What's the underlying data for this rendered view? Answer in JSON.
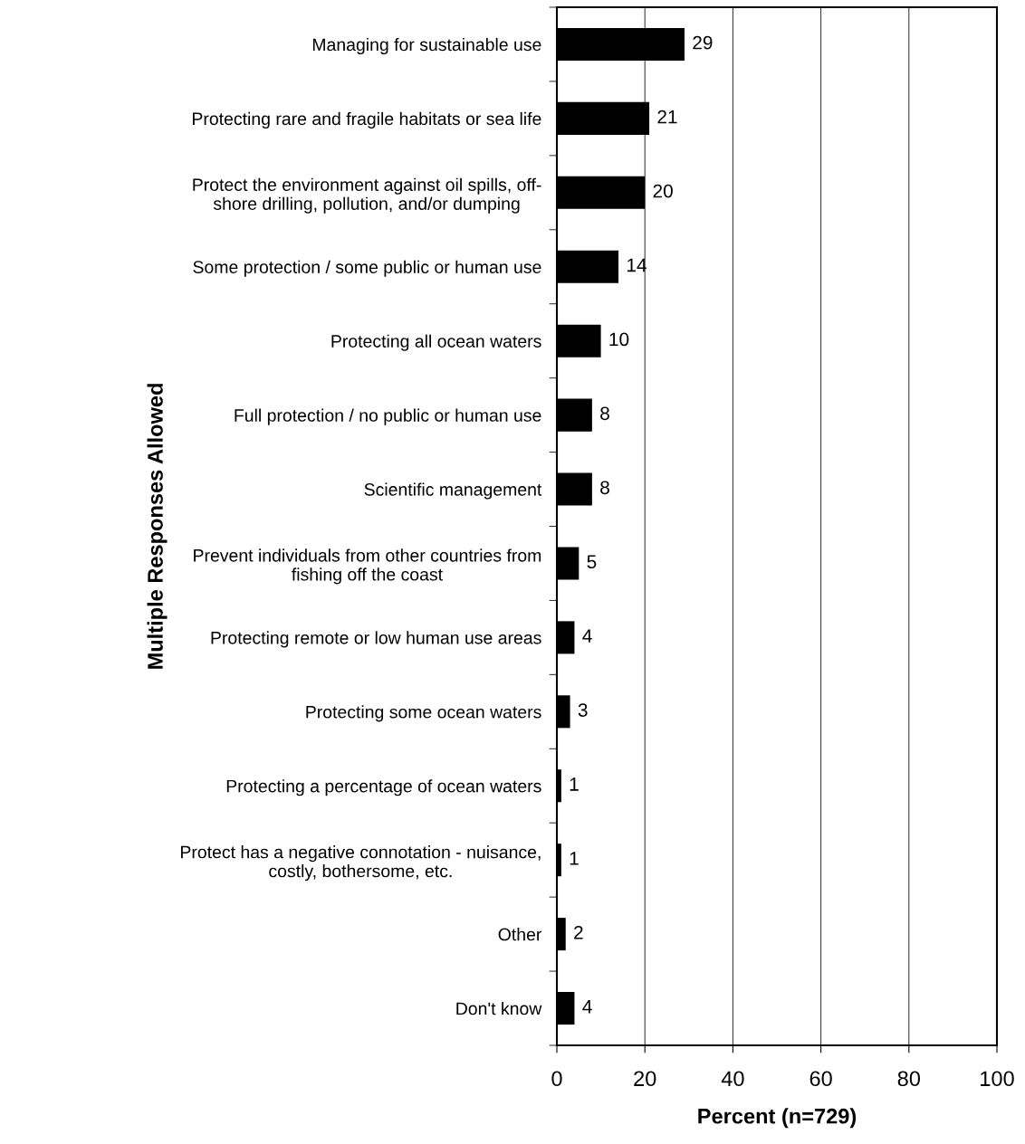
{
  "chart_data": {
    "type": "bar",
    "orientation": "horizontal",
    "xlabel": "Percent (n=729)",
    "ylabel": "Multiple Responses Allowed",
    "categories": [
      "Managing for sustainable use",
      "Protecting rare and fragile habitats or sea life",
      "Protect the environment against oil spills, off-\nshore drilling, pollution, and/or dumping",
      "Some protection / some public or human use",
      "Protecting all ocean waters",
      "Full protection / no public or human use",
      "Scientific management",
      "Prevent individuals from other countries from\nfishing off the coast",
      "Protecting remote or low human use areas",
      "Protecting some ocean waters",
      "Protecting a percentage of ocean waters",
      "Protect has a negative connotation - nuisance,\ncostly, bothersome, etc.",
      "Other",
      "Don't know"
    ],
    "values": [
      29,
      21,
      20,
      14,
      10,
      8,
      8,
      5,
      4,
      3,
      1,
      1,
      2,
      4
    ],
    "color": "#000000",
    "data_labels": true,
    "grid": "x",
    "legend": false,
    "xlim": [
      0,
      100
    ],
    "xticks": [
      0,
      20,
      40,
      60,
      80,
      100
    ]
  }
}
